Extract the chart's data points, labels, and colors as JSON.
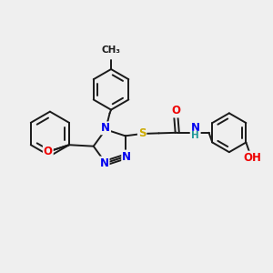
{
  "background_color": "#efefef",
  "bond_color": "#1a1a1a",
  "bond_width": 1.4,
  "atom_colors": {
    "N": "#0000ee",
    "O": "#ee0000",
    "S": "#ccaa00",
    "H": "#229999",
    "C": "#1a1a1a"
  },
  "font_size_atoms": 8.5,
  "canvas_xlim": [
    0,
    10
  ],
  "canvas_ylim": [
    0,
    10
  ]
}
